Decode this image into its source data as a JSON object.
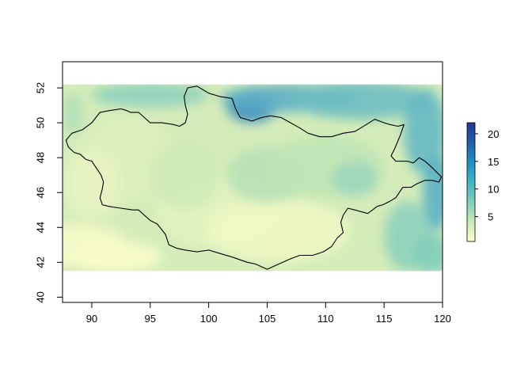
{
  "chart_data": {
    "type": "heatmap",
    "title": "",
    "xlabel": "",
    "ylabel": "",
    "xlim": [
      87.5,
      120
    ],
    "ylim": [
      39.7,
      53.5
    ],
    "raster_extent": {
      "x": [
        87.5,
        120
      ],
      "y": [
        41.5,
        52.2
      ]
    },
    "x_ticks": [
      90,
      95,
      100,
      105,
      110,
      115,
      120
    ],
    "y_ticks": [
      40,
      42,
      44,
      46,
      48,
      50,
      52
    ],
    "colorbar": {
      "min": 0.5,
      "max": 22,
      "ticks": [
        5,
        10,
        15,
        20
      ],
      "colors": [
        "#ffffcc",
        "#c7e9b4",
        "#7fcdbb",
        "#41b6c4",
        "#1d91c0",
        "#225ea8",
        "#253494"
      ]
    },
    "border_color": "#000000",
    "boundary": [
      [
        87.8,
        49.0
      ],
      [
        88.3,
        49.4
      ],
      [
        89.2,
        49.6
      ],
      [
        90.0,
        50.0
      ],
      [
        90.7,
        50.6
      ],
      [
        91.5,
        50.7
      ],
      [
        92.5,
        50.8
      ],
      [
        93.0,
        50.7
      ],
      [
        93.3,
        50.6
      ],
      [
        94.0,
        50.6
      ],
      [
        94.5,
        50.3
      ],
      [
        95.0,
        50.0
      ],
      [
        96.0,
        50.0
      ],
      [
        97.0,
        49.9
      ],
      [
        97.5,
        49.8
      ],
      [
        98.0,
        50.0
      ],
      [
        98.2,
        50.5
      ],
      [
        98.0,
        51.0
      ],
      [
        97.9,
        51.5
      ],
      [
        98.2,
        52.0
      ],
      [
        99.0,
        52.1
      ],
      [
        100.0,
        51.7
      ],
      [
        101.0,
        51.5
      ],
      [
        102.0,
        51.4
      ],
      [
        102.3,
        50.8
      ],
      [
        102.7,
        50.3
      ],
      [
        103.7,
        50.1
      ],
      [
        104.5,
        50.3
      ],
      [
        105.3,
        50.4
      ],
      [
        106.2,
        50.3
      ],
      [
        107.0,
        50.0
      ],
      [
        107.8,
        49.7
      ],
      [
        108.5,
        49.4
      ],
      [
        109.5,
        49.2
      ],
      [
        110.5,
        49.2
      ],
      [
        111.5,
        49.4
      ],
      [
        112.5,
        49.5
      ],
      [
        113.0,
        49.7
      ],
      [
        114.2,
        50.2
      ],
      [
        115.0,
        50.0
      ],
      [
        115.5,
        49.9
      ],
      [
        116.2,
        49.8
      ],
      [
        116.7,
        49.9
      ],
      [
        116.4,
        49.3
      ],
      [
        115.9,
        48.5
      ],
      [
        115.6,
        48.1
      ],
      [
        116.0,
        47.8
      ],
      [
        117.0,
        47.8
      ],
      [
        117.5,
        47.7
      ],
      [
        118.0,
        48.0
      ],
      [
        118.5,
        47.8
      ],
      [
        119.0,
        47.5
      ],
      [
        119.3,
        47.3
      ],
      [
        119.9,
        46.9
      ],
      [
        119.7,
        46.6
      ],
      [
        119.1,
        46.7
      ],
      [
        118.5,
        46.7
      ],
      [
        117.8,
        46.5
      ],
      [
        117.3,
        46.3
      ],
      [
        116.6,
        46.3
      ],
      [
        116.0,
        45.7
      ],
      [
        115.5,
        45.5
      ],
      [
        114.9,
        45.3
      ],
      [
        114.4,
        45.2
      ],
      [
        113.6,
        44.8
      ],
      [
        112.5,
        45.0
      ],
      [
        111.9,
        45.1
      ],
      [
        111.5,
        44.7
      ],
      [
        111.3,
        44.3
      ],
      [
        111.5,
        43.7
      ],
      [
        111.0,
        43.4
      ],
      [
        110.5,
        42.9
      ],
      [
        109.8,
        42.6
      ],
      [
        108.9,
        42.4
      ],
      [
        107.8,
        42.4
      ],
      [
        107.0,
        42.2
      ],
      [
        106.0,
        41.9
      ],
      [
        105.0,
        41.6
      ],
      [
        104.0,
        41.9
      ],
      [
        103.3,
        42.0
      ],
      [
        102.0,
        42.3
      ],
      [
        101.0,
        42.5
      ],
      [
        100.0,
        42.7
      ],
      [
        99.0,
        42.6
      ],
      [
        98.0,
        42.7
      ],
      [
        97.3,
        42.8
      ],
      [
        96.6,
        43.0
      ],
      [
        96.3,
        43.6
      ],
      [
        95.6,
        44.2
      ],
      [
        95.3,
        44.3
      ],
      [
        95.0,
        44.4
      ],
      [
        94.0,
        45.0
      ],
      [
        93.5,
        45.0
      ],
      [
        92.5,
        45.1
      ],
      [
        91.5,
        45.2
      ],
      [
        90.9,
        45.3
      ],
      [
        90.7,
        45.7
      ],
      [
        90.9,
        46.2
      ],
      [
        91.0,
        46.6
      ],
      [
        90.8,
        47.0
      ],
      [
        90.4,
        47.4
      ],
      [
        90.0,
        47.8
      ],
      [
        89.5,
        47.9
      ],
      [
        89.0,
        48.2
      ],
      [
        88.5,
        48.3
      ],
      [
        88.0,
        48.6
      ],
      [
        87.8,
        49.0
      ]
    ]
  }
}
